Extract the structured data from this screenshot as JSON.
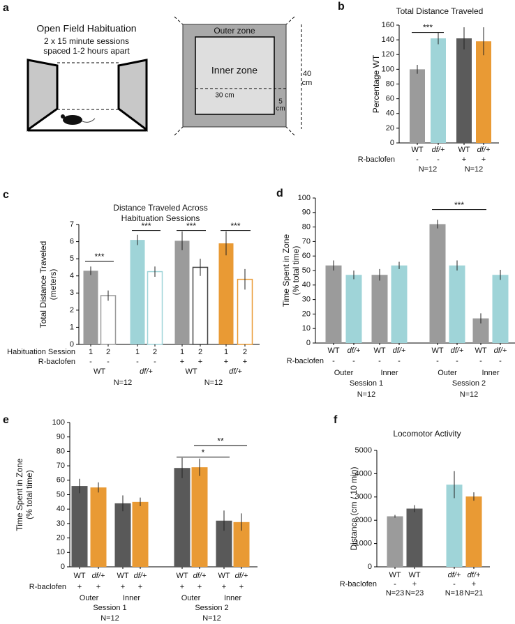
{
  "panel_labels": [
    "a",
    "b",
    "c",
    "d",
    "e",
    "f"
  ],
  "diagram": {
    "title": "Open Field Habituation",
    "subtitle": [
      "2 x 15 minute sessions",
      "spaced 1-2 hours apart"
    ],
    "outer_zone": "Outer zone",
    "inner_zone": "Inner zone",
    "inner_width": "30 cm",
    "outer_size": [
      "40",
      "cm"
    ],
    "border": [
      "5",
      "cm"
    ]
  },
  "chart_data": [
    {
      "type": "bar",
      "title": [
        "Total Distance Traveled"
      ],
      "y_label": [
        "Percentage WT"
      ],
      "ylim": [
        0,
        160
      ],
      "yticks": [
        0,
        20,
        40,
        60,
        80,
        100,
        120,
        140,
        160
      ],
      "categories": [
        "WT",
        "df/+",
        "WT",
        "df/+"
      ],
      "values": [
        100,
        142,
        142,
        138
      ],
      "errors": [
        6,
        8,
        15,
        19
      ],
      "colors": [
        "#9b9b9b",
        "#9fd4d8",
        "#5b5b5b",
        "#e99a34"
      ],
      "rows": [
        {
          "label": "R-baclofen",
          "values": [
            "-",
            "-",
            "+",
            "+"
          ]
        }
      ],
      "group_labels": [
        [
          "N=12",
          "N=12"
        ]
      ],
      "significance": [
        "***"
      ]
    },
    {
      "type": "bar",
      "title": [
        "Distance Traveled Across",
        "Habituation Sessions"
      ],
      "y_label": [
        "Total Distance Traveled",
        "(meters)"
      ],
      "ylim": [
        0,
        7
      ],
      "yticks": [
        0,
        1,
        2,
        3,
        4,
        5,
        6,
        7
      ],
      "category_label": "Habituation Session",
      "categories": [
        "1",
        "2",
        "1",
        "2",
        "1",
        "2",
        "1",
        "2"
      ],
      "values": [
        4.3,
        2.85,
        6.1,
        4.25,
        6.05,
        4.5,
        5.9,
        3.8
      ],
      "errors": [
        0.25,
        0.3,
        0.3,
        0.3,
        0.55,
        0.5,
        0.7,
        0.6
      ],
      "colors": [
        "#9b9b9b",
        "#9b9b9b",
        "#9fd4d8",
        "#9fd4d8",
        "#9b9b9b",
        "#444444",
        "#e99a34",
        "#e99a34"
      ],
      "hollow": [
        false,
        true,
        false,
        true,
        false,
        true,
        false,
        true
      ],
      "rows": [
        {
          "label": "R-baclofen",
          "values": [
            "-",
            "-",
            "-",
            "-",
            "+",
            "+",
            "+",
            "+"
          ]
        }
      ],
      "group_labels": [
        [
          "WT",
          "df/+",
          "WT",
          "df/+"
        ],
        [
          "N=12",
          "N=12"
        ]
      ],
      "significance": [
        "***",
        "***",
        "***",
        "***"
      ]
    },
    {
      "type": "bar",
      "y_label": [
        "Time Spent in Zone",
        "(% total time)"
      ],
      "ylim": [
        0,
        100
      ],
      "yticks": [
        0,
        10,
        20,
        30,
        40,
        50,
        60,
        70,
        80,
        90,
        100
      ],
      "categories": [
        "WT",
        "df/+",
        "WT",
        "df/+",
        "WT",
        "df/+",
        "WT",
        "df/+"
      ],
      "values": [
        53.5,
        47,
        47,
        53.5,
        82,
        53.5,
        17,
        47
      ],
      "errors": [
        3.5,
        3,
        4,
        2.5,
        3,
        3.5,
        3.5,
        3.5
      ],
      "colors": [
        "#9b9b9b",
        "#9fd4d8",
        "#9b9b9b",
        "#9fd4d8",
        "#9b9b9b",
        "#9fd4d8",
        "#9b9b9b",
        "#9fd4d8"
      ],
      "rows": [
        {
          "label": "R-baclofen",
          "values": [
            "-",
            "-",
            "-",
            "-",
            "-",
            "-",
            "-",
            "-"
          ]
        }
      ],
      "group_labels": [
        [
          "Outer",
          "Inner",
          "Outer",
          "Inner"
        ],
        [
          "Session 1",
          "Session 2"
        ],
        [
          "N=12",
          "N=12"
        ]
      ],
      "significance": [
        "***"
      ]
    },
    {
      "type": "bar",
      "y_label": [
        "Time Spent in Zone",
        "(% total time)"
      ],
      "ylim": [
        0,
        100
      ],
      "yticks": [
        0,
        10,
        20,
        30,
        40,
        50,
        60,
        70,
        80,
        90,
        100
      ],
      "categories": [
        "WT",
        "df/+",
        "WT",
        "df/+",
        "WT",
        "df/+",
        "WT",
        "df/+"
      ],
      "values": [
        56,
        55,
        44,
        45,
        68.5,
        69,
        32,
        31
      ],
      "errors": [
        5,
        3.5,
        5.5,
        3,
        7,
        6,
        7,
        6
      ],
      "colors": [
        "#595959",
        "#e99a34",
        "#595959",
        "#e99a34",
        "#595959",
        "#e99a34",
        "#595959",
        "#e99a34"
      ],
      "rows": [
        {
          "label": "R-baclofen",
          "values": [
            "+",
            "+",
            "+",
            "+",
            "+",
            "+",
            "+",
            "+"
          ]
        }
      ],
      "group_labels": [
        [
          "Outer",
          "Inner",
          "Outer",
          "Inner"
        ],
        [
          "Session 1",
          "Session 2"
        ],
        [
          "N=12",
          "N=12"
        ]
      ],
      "significance": [
        "*",
        "**"
      ]
    },
    {
      "type": "bar",
      "title": [
        "Locomotor Activity"
      ],
      "y_label": [
        "Distance (cm / 10 min)"
      ],
      "ylim": [
        0,
        5000
      ],
      "yticks": [
        0,
        1000,
        2000,
        3000,
        4000,
        5000
      ],
      "categories": [
        "WT",
        "WT",
        "df/+",
        "df/+"
      ],
      "values": [
        2170,
        2500,
        3530,
        3020
      ],
      "errors": [
        60,
        150,
        580,
        180
      ],
      "colors": [
        "#9b9b9b",
        "#5b5b5b",
        "#9fd4d8",
        "#e99a34"
      ],
      "rows": [
        {
          "label": "R-baclofen",
          "values": [
            "-",
            "+",
            "-",
            "+"
          ]
        },
        {
          "values": [
            "N=23",
            "N=23",
            "N=18",
            "N=21"
          ]
        }
      ],
      "group_labels": [],
      "significance": []
    }
  ]
}
